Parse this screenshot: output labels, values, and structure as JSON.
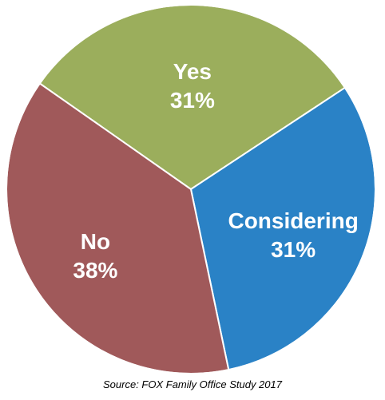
{
  "chart_data": {
    "type": "pie",
    "title": "",
    "slices": [
      {
        "label": "Yes",
        "value": 31,
        "value_label": "31%",
        "color": "#9BAE5C"
      },
      {
        "label": "Considering",
        "value": 31,
        "value_label": "31%",
        "color": "#2A82C6"
      },
      {
        "label": "No",
        "value": 38,
        "value_label": "38%",
        "color": "#A0595A"
      }
    ],
    "legend": "none"
  },
  "source": "Source: FOX Family Office Study 2017"
}
